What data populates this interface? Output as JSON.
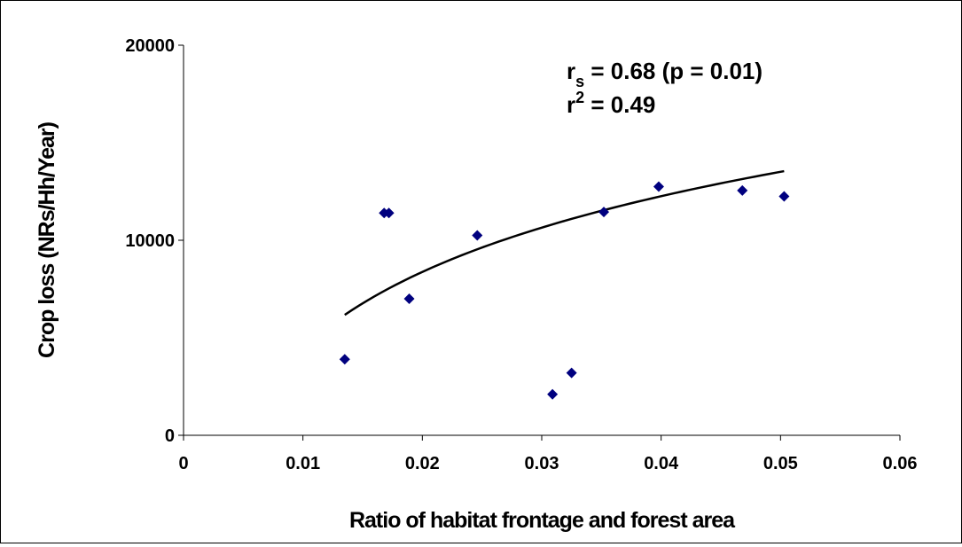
{
  "chart_data": {
    "type": "scatter",
    "title": "",
    "xlabel": "Ratio of habitat frontage and forest area",
    "ylabel": "Crop loss (NRs/Hh/Year)",
    "xlim": [
      0,
      0.06
    ],
    "ylim": [
      0,
      20000
    ],
    "x_ticks": [
      0,
      0.01,
      0.02,
      0.03,
      0.04,
      0.05,
      0.06
    ],
    "x_tick_labels": [
      "0",
      "0.01",
      "0.02",
      "0.03",
      "0.04",
      "0.05",
      "0.06"
    ],
    "y_ticks": [
      0,
      10000,
      20000
    ],
    "y_tick_labels": [
      "0",
      "10000",
      "20000"
    ],
    "grid": false,
    "legend": "none",
    "series": [
      {
        "marker": "diamond",
        "color": "#00007f",
        "points": [
          {
            "x": 0.0135,
            "y": 3900
          },
          {
            "x": 0.0168,
            "y": 11400
          },
          {
            "x": 0.0172,
            "y": 11400
          },
          {
            "x": 0.0189,
            "y": 7000
          },
          {
            "x": 0.0246,
            "y": 10250
          },
          {
            "x": 0.0309,
            "y": 2100
          },
          {
            "x": 0.0325,
            "y": 3200
          },
          {
            "x": 0.0352,
            "y": 11450
          },
          {
            "x": 0.0398,
            "y": 12750
          },
          {
            "x": 0.0468,
            "y": 12550
          },
          {
            "x": 0.0503,
            "y": 12250
          }
        ]
      }
    ],
    "trendline": {
      "type": "logarithmic",
      "color": "#000000",
      "x_range": [
        0.0135,
        0.0503
      ],
      "points": [
        {
          "x": 0.0135,
          "y": 6200
        },
        {
          "x": 0.02,
          "y": 8300
        },
        {
          "x": 0.03,
          "y": 10700
        },
        {
          "x": 0.04,
          "y": 12300
        },
        {
          "x": 0.0503,
          "y": 13500
        }
      ]
    },
    "annotations": {
      "rs_main": "r",
      "rs_sub": "s",
      "rs_rest": " = 0.68 (p = 0.01)",
      "r2_main": "r",
      "r2_sup": "2",
      "r2_rest": " = 0.49"
    }
  }
}
